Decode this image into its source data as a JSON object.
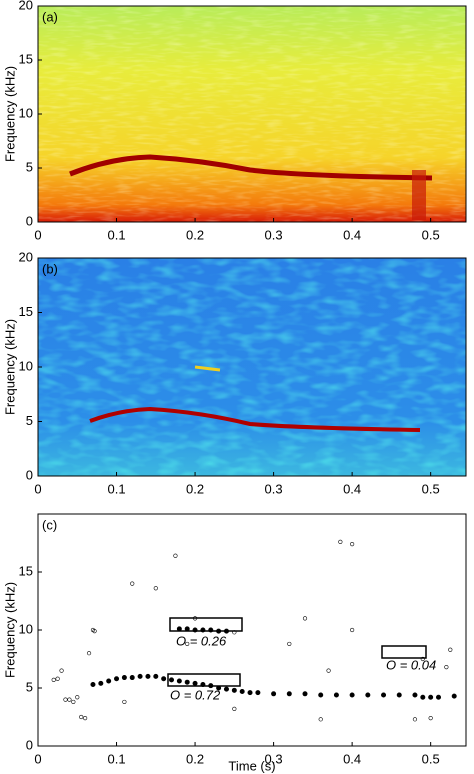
{
  "chart_data": [
    {
      "type": "spectrogram",
      "panel_label": "(a)",
      "ylabel": "Frequency (kHz)",
      "xlim": [
        0,
        0.545
      ],
      "xticks": [
        0,
        0.1,
        0.2,
        0.3,
        0.4,
        0.5
      ],
      "ylim": [
        0,
        20
      ],
      "yticks": [
        0,
        5,
        10,
        15,
        20
      ]
    },
    {
      "type": "spectrogram",
      "panel_label": "(b)",
      "ylabel": "Frequency (kHz)",
      "xlim": [
        0,
        0.545
      ],
      "xticks": [
        0,
        0.1,
        0.2,
        0.3,
        0.4,
        0.5
      ],
      "ylim": [
        0,
        20
      ],
      "yticks": [
        0,
        5,
        10,
        15,
        20
      ]
    },
    {
      "type": "scatter",
      "panel_label": "(c)",
      "ylabel": "Frequency (kHz)",
      "xlabel": "Time (s)",
      "xlim": [
        0,
        0.545
      ],
      "xticks": [
        0,
        0.1,
        0.2,
        0.3,
        0.4,
        0.5
      ],
      "ylim": [
        0,
        20
      ],
      "yticks": [
        0,
        5,
        10,
        15
      ],
      "annotations": [
        "O = 0.26",
        "O = 0.72",
        "O = 0.04"
      ],
      "series": [
        {
          "marker": "filled",
          "color": "#000000",
          "x": [
            0.07,
            0.08,
            0.09,
            0.1,
            0.11,
            0.12,
            0.13,
            0.14,
            0.15,
            0.16,
            0.17,
            0.18,
            0.19,
            0.2,
            0.21,
            0.22,
            0.23,
            0.24,
            0.25,
            0.26,
            0.27,
            0.28,
            0.3,
            0.32,
            0.34,
            0.36,
            0.38,
            0.4,
            0.42,
            0.44,
            0.46,
            0.48,
            0.49,
            0.5,
            0.51,
            0.53,
            0.18,
            0.19,
            0.2,
            0.21,
            0.22,
            0.23,
            0.24
          ],
          "y": [
            5.3,
            5.4,
            5.6,
            5.8,
            5.9,
            5.9,
            6.0,
            6.0,
            6.0,
            5.8,
            5.7,
            5.6,
            5.5,
            5.4,
            5.3,
            5.2,
            5.0,
            4.9,
            4.8,
            4.7,
            4.6,
            4.6,
            4.5,
            4.5,
            4.5,
            4.4,
            4.4,
            4.4,
            4.4,
            4.4,
            4.4,
            4.4,
            4.2,
            4.2,
            4.2,
            4.3,
            10.1,
            10.1,
            10.0,
            10.0,
            10.0,
            9.9,
            9.9
          ]
        },
        {
          "marker": "open",
          "color": "#000000",
          "x": [
            0.02,
            0.025,
            0.03,
            0.035,
            0.04,
            0.045,
            0.05,
            0.055,
            0.06,
            0.065,
            0.07,
            0.072,
            0.11,
            0.12,
            0.15,
            0.175,
            0.19,
            0.2,
            0.25,
            0.25,
            0.32,
            0.34,
            0.36,
            0.37,
            0.385,
            0.4,
            0.4,
            0.48,
            0.49,
            0.5,
            0.52,
            0.525
          ],
          "y": [
            5.7,
            5.8,
            6.5,
            4.0,
            4.0,
            3.8,
            4.2,
            2.5,
            2.4,
            8.0,
            10.0,
            9.9,
            3.8,
            14.0,
            13.6,
            16.4,
            8.8,
            11.0,
            9.8,
            3.2,
            8.8,
            11.0,
            2.3,
            6.5,
            17.6,
            17.4,
            10.0,
            2.3,
            7.5,
            2.4,
            6.8,
            8.3
          ]
        }
      ]
    }
  ]
}
